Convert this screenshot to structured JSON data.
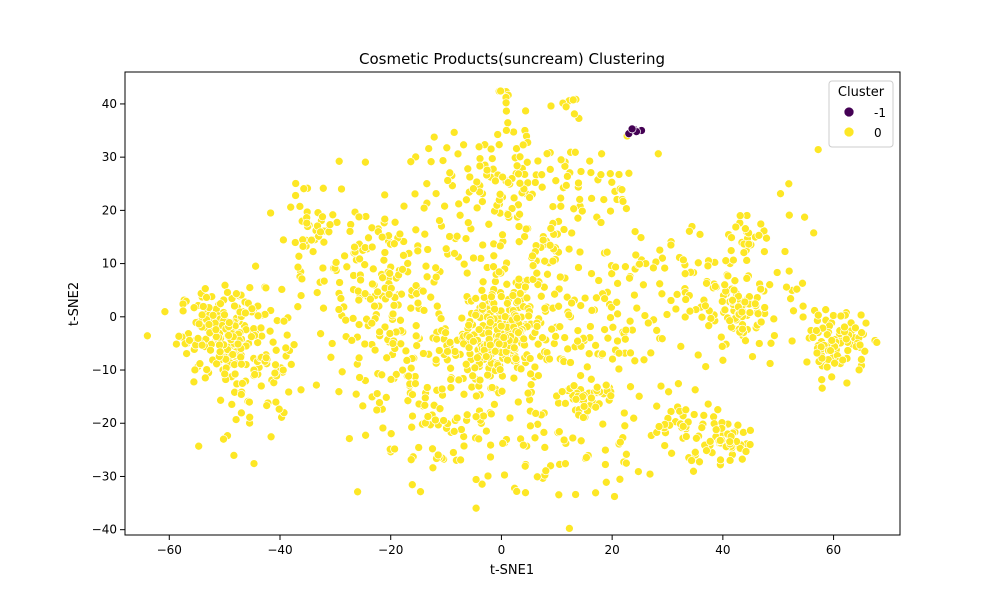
{
  "chart_data": {
    "type": "scatter",
    "title": "Cosmetic Products(suncream) Clustering",
    "xlabel": "t-SNE1",
    "ylabel": "t-SNE2",
    "xlim": [
      -68,
      72
    ],
    "ylim": [
      -41,
      46
    ],
    "x_ticks": [
      -60,
      -40,
      -20,
      0,
      20,
      40,
      60
    ],
    "y_ticks": [
      -40,
      -30,
      -20,
      -10,
      0,
      10,
      20,
      30,
      40
    ],
    "grid": false,
    "legend": {
      "title": "Cluster",
      "placement": "top-right",
      "entries": [
        {
          "label": "-1",
          "color": "#440154"
        },
        {
          "label": "0",
          "color": "#fde725"
        }
      ]
    },
    "series": [
      {
        "name": "-1",
        "color": "#440154",
        "points": [
          [
            23.0,
            34.4
          ],
          [
            24.0,
            35.2
          ],
          [
            25.3,
            35.0
          ],
          [
            24.4,
            34.8
          ],
          [
            23.6,
            35.3
          ]
        ]
      },
      {
        "name": "0",
        "color": "#fde725",
        "clusters": [
          {
            "cx": -49.0,
            "cy": -3.0,
            "sx": 4.6,
            "sy": 4.2,
            "n": 210
          },
          {
            "cx": -0.8,
            "cy": -3.2,
            "sx": 4.4,
            "sy": 4.2,
            "n": 260
          },
          {
            "cx": 61.0,
            "cy": -5.0,
            "sx": 2.6,
            "sy": 2.8,
            "n": 95
          },
          {
            "cx": 43.0,
            "cy": 0.5,
            "sx": 3.0,
            "sy": 3.4,
            "n": 90
          },
          {
            "cx": 40.5,
            "cy": -23.5,
            "sx": 2.2,
            "sy": 1.8,
            "n": 40
          },
          {
            "cx": 16.0,
            "cy": -15.5,
            "sx": 2.2,
            "sy": 1.8,
            "n": 35
          },
          {
            "cx": 44.5,
            "cy": 15.0,
            "sx": 1.6,
            "sy": 1.8,
            "n": 22
          },
          {
            "cx": 1.2,
            "cy": 41.3,
            "sx": 0.9,
            "sy": 0.8,
            "n": 7
          },
          {
            "cx": 12.3,
            "cy": 39.5,
            "sx": 0.9,
            "sy": 1.1,
            "n": 7
          },
          {
            "cx": -34.0,
            "cy": 16.0,
            "sx": 3.2,
            "sy": 4.6,
            "n": 40
          },
          {
            "cx": -22.0,
            "cy": 8.0,
            "sx": 6.5,
            "sy": 7.5,
            "n": 150
          },
          {
            "cx": 6.0,
            "cy": 15.0,
            "sx": 9.0,
            "sy": 9.0,
            "n": 170
          },
          {
            "cx": -5.0,
            "cy": -20.0,
            "sx": 10.0,
            "sy": 6.5,
            "n": 120
          },
          {
            "cx": 33.0,
            "cy": -21.0,
            "sx": 3.6,
            "sy": 3.0,
            "n": 45
          },
          {
            "cx": 50.0,
            "cy": 5.0,
            "sx": 6.0,
            "sy": 8.0,
            "n": 30
          },
          {
            "cx": -44.0,
            "cy": -14.0,
            "sx": 5.0,
            "sy": 6.0,
            "n": 55
          },
          {
            "cx": 30.0,
            "cy": 5.0,
            "sx": 6.0,
            "sy": 7.0,
            "n": 60
          },
          {
            "cx": 20.0,
            "cy": -5.0,
            "sx": 8.0,
            "sy": 6.0,
            "n": 80
          },
          {
            "cx": 0.0,
            "cy": 28.0,
            "sx": 8.0,
            "sy": 4.0,
            "n": 70
          },
          {
            "cx": -15.0,
            "cy": -8.0,
            "sx": 8.0,
            "sy": 6.0,
            "n": 90
          },
          {
            "cx": 15.0,
            "cy": -28.0,
            "sx": 8.0,
            "sy": 4.0,
            "n": 40
          },
          {
            "cx": 20.0,
            "cy": 24.0,
            "sx": 3.0,
            "sy": 2.0,
            "n": 12
          }
        ]
      }
    ]
  }
}
